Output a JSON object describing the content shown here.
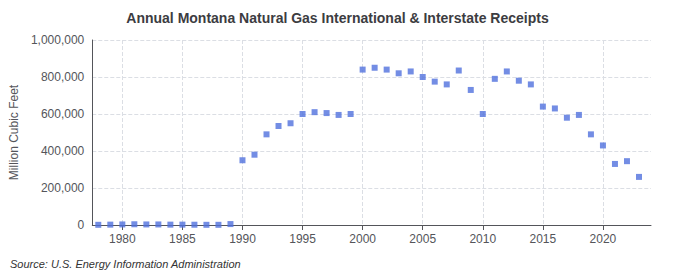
{
  "chart_data": {
    "type": "scatter",
    "title": "Annual Montana Natural Gas International & Interstate Receipts",
    "ylabel": "Million Cubic Feet",
    "annotation": "Source: U.S. Energy Information Administration",
    "marker": "square",
    "x": [
      1978,
      1979,
      1980,
      1981,
      1982,
      1983,
      1984,
      1985,
      1986,
      1987,
      1988,
      1989,
      1990,
      1991,
      1992,
      1993,
      1994,
      1995,
      1996,
      1997,
      1998,
      1999,
      2000,
      2001,
      2002,
      2003,
      2004,
      2005,
      2006,
      2007,
      2008,
      2009,
      2010,
      2011,
      2012,
      2013,
      2014,
      2015,
      2016,
      2017,
      2018,
      2019,
      2020,
      2021,
      2022,
      2023
    ],
    "values": [
      1000,
      2000,
      3000,
      4000,
      3000,
      3000,
      2000,
      2000,
      1500,
      1000,
      1000,
      5000,
      350000,
      380000,
      490000,
      535000,
      550000,
      600000,
      610000,
      605000,
      595000,
      600000,
      840000,
      850000,
      840000,
      820000,
      830000,
      800000,
      775000,
      760000,
      835000,
      730000,
      600000,
      790000,
      830000,
      780000,
      760000,
      640000,
      630000,
      580000,
      595000,
      490000,
      430000,
      330000,
      345000,
      260000
    ],
    "xlim": [
      1977.5,
      2024
    ],
    "xticks": [
      1980,
      1985,
      1990,
      1995,
      2000,
      2005,
      2010,
      2015,
      2020
    ],
    "ylim": [
      0,
      1000000
    ],
    "yticks": [
      0,
      {
        "value": 200000,
        "label": "200,000"
      },
      {
        "value": 400000,
        "label": "400,000"
      },
      {
        "value": 600000,
        "label": "600,000"
      },
      {
        "value": 800000,
        "label": "800,000"
      },
      {
        "value": 1000000,
        "label": "1,000,000"
      }
    ],
    "grid": true
  }
}
